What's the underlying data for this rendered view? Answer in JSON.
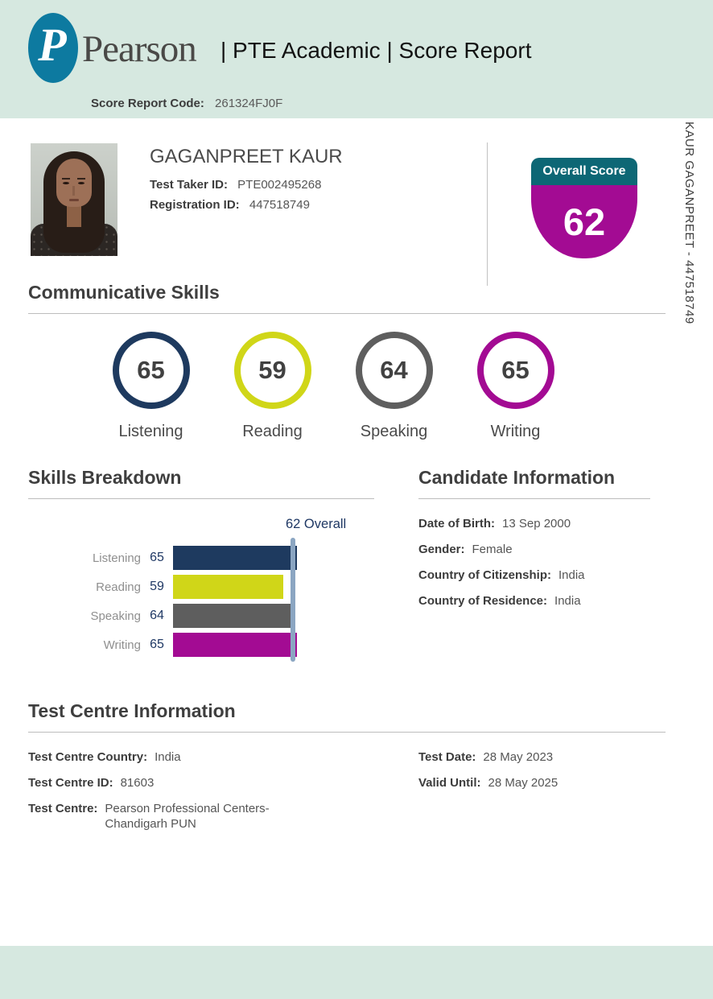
{
  "header": {
    "brand": "Pearson",
    "logo_glyph": "P",
    "title": "| PTE Academic | Score Report",
    "score_report_code_label": "Score Report Code:",
    "score_report_code": "261324FJ0F"
  },
  "side_text": "KAUR GAGANPREET - 447518749",
  "candidate": {
    "name": "GAGANPREET KAUR",
    "test_taker_id_label": "Test Taker ID:",
    "test_taker_id": "PTE002495268",
    "registration_id_label": "Registration ID:",
    "registration_id": "447518749"
  },
  "overall_badge": {
    "label": "Overall Score",
    "score": "62",
    "cap_color": "#0d6775",
    "body_color": "#a30b93"
  },
  "sections": {
    "communicative_skills": "Communicative Skills",
    "skills_breakdown": "Skills Breakdown",
    "candidate_information": "Candidate Information",
    "test_centre_information": "Test Centre Information"
  },
  "chart_data": {
    "type": "bar",
    "orientation": "horizontal",
    "title": "Skills Breakdown",
    "categories": [
      "Listening",
      "Reading",
      "Speaking",
      "Writing"
    ],
    "values": [
      65,
      59,
      64,
      65
    ],
    "colors": [
      "#1e3a5f",
      "#d0d618",
      "#5e5e5e",
      "#a30b93"
    ],
    "scale": {
      "min": 10,
      "max": 90
    },
    "overall_marker": {
      "value": 62,
      "label": "62 Overall",
      "color": "#8ba6c2"
    },
    "grid": false,
    "legend": false
  },
  "candidate_info": {
    "rows": [
      {
        "label": "Date of Birth:",
        "value": "13 Sep 2000"
      },
      {
        "label": "Gender:",
        "value": "Female"
      },
      {
        "label": "Country of Citizenship:",
        "value": "India"
      },
      {
        "label": "Country of Residence:",
        "value": "India"
      }
    ]
  },
  "test_centre": {
    "left_rows": [
      {
        "label": "Test Centre Country:",
        "value": "India",
        "wrap": false
      },
      {
        "label": "Test Centre ID:",
        "value": "81603",
        "wrap": false
      },
      {
        "label": "Test Centre:",
        "value": "Pearson Professional Centers-Chandigarh PUN",
        "wrap": true
      }
    ],
    "right_rows": [
      {
        "label": "Test Date:",
        "value": "28 May 2023",
        "wrap": false
      },
      {
        "label": "Valid Until:",
        "value": "28 May 2025",
        "wrap": false
      }
    ]
  },
  "colors": {
    "band_green": "#d6e8e0",
    "logo_teal": "#0d7aa0",
    "navy_text": "#1f3864"
  }
}
